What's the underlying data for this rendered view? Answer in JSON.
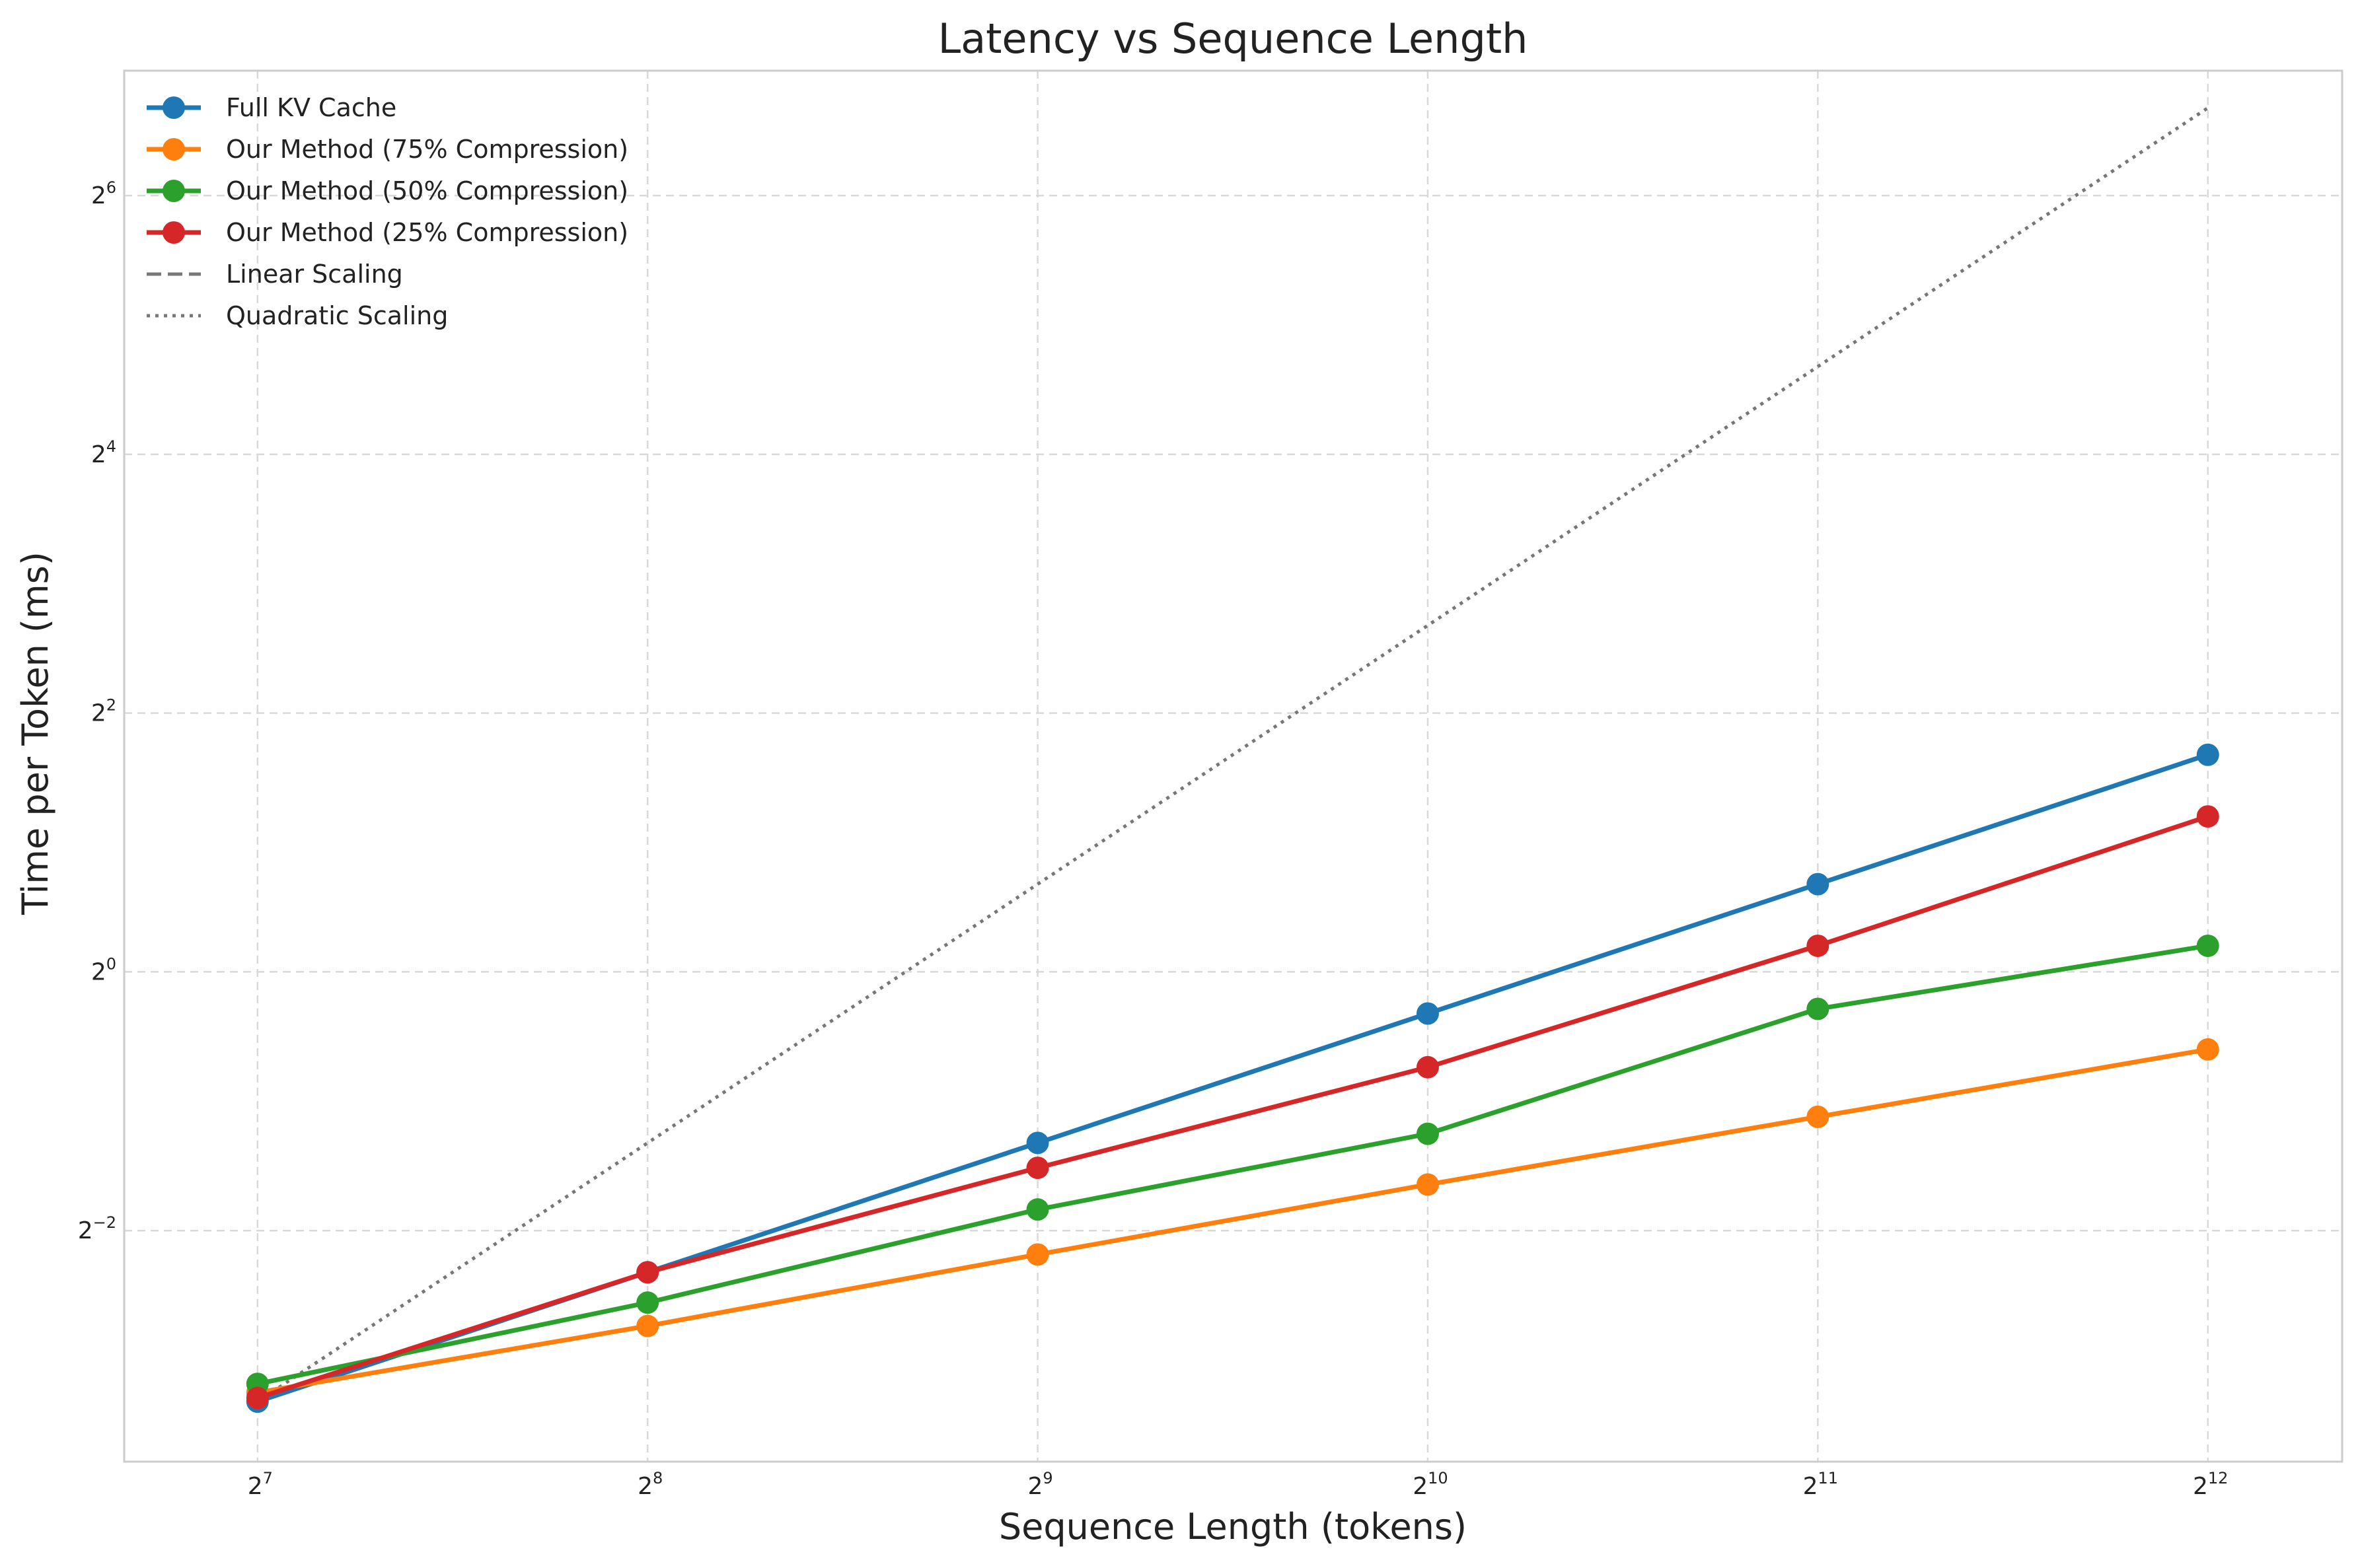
{
  "chart_data": {
    "type": "line",
    "title": "Latency vs Sequence Length",
    "xlabel": "Sequence Length (tokens)",
    "ylabel": "Time per Token (ms)",
    "x_scale": "log2",
    "y_scale": "log2",
    "x": [
      128,
      256,
      512,
      1024,
      2048,
      4096
    ],
    "x_ticks": [
      {
        "base": "2",
        "exp": "7",
        "value": 128
      },
      {
        "base": "2",
        "exp": "8",
        "value": 256
      },
      {
        "base": "2",
        "exp": "9",
        "value": 512
      },
      {
        "base": "2",
        "exp": "10",
        "value": 1024
      },
      {
        "base": "2",
        "exp": "11",
        "value": 2048
      },
      {
        "base": "2",
        "exp": "12",
        "value": 4096
      }
    ],
    "y_ticks": [
      {
        "base": "2",
        "exp": "−2",
        "value": 0.25
      },
      {
        "base": "2",
        "exp": "0",
        "value": 1
      },
      {
        "base": "2",
        "exp": "2",
        "value": 4
      },
      {
        "base": "2",
        "exp": "4",
        "value": 16
      },
      {
        "base": "2",
        "exp": "6",
        "value": 64
      }
    ],
    "xlim": [
      101,
      5200
    ],
    "ylim": [
      0.0725,
      125
    ],
    "grid": true,
    "legend_position": "top-left",
    "series": [
      {
        "name": "Full KV Cache",
        "color": "#1f77b4",
        "style": "solid",
        "marker": true,
        "values": [
          0.1,
          0.2,
          0.4,
          0.8,
          1.6,
          3.2
        ]
      },
      {
        "name": "Our Method (75% Compression)",
        "color": "#ff7f0e",
        "style": "solid",
        "marker": true,
        "values": [
          0.105,
          0.15,
          0.22,
          0.32,
          0.46,
          0.66
        ]
      },
      {
        "name": "Our Method (50% Compression)",
        "color": "#2ca02c",
        "style": "solid",
        "marker": true,
        "values": [
          0.11,
          0.17,
          0.28,
          0.42,
          0.82,
          1.15
        ]
      },
      {
        "name": "Our Method (25% Compression)",
        "color": "#d62728",
        "style": "solid",
        "marker": true,
        "values": [
          0.102,
          0.2,
          0.35,
          0.6,
          1.15,
          2.3
        ]
      },
      {
        "name": "Linear Scaling",
        "color": "#777777",
        "style": "dashed",
        "marker": false,
        "values": [
          0.1,
          0.2,
          0.4,
          0.8,
          1.6,
          3.2
        ]
      },
      {
        "name": "Quadratic Scaling",
        "color": "#777777",
        "style": "dotted",
        "marker": false,
        "values": [
          0.1,
          0.4,
          1.6,
          6.4,
          25.6,
          102.4
        ]
      }
    ]
  }
}
